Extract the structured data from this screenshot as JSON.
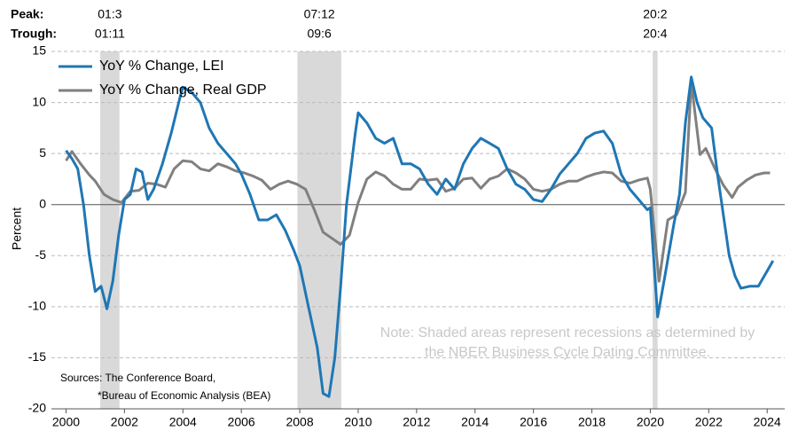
{
  "chart_data": {
    "type": "line",
    "y_label": "Percent",
    "peak_label": "Peak:",
    "trough_label": "Trough:",
    "note": [
      "Note: Shaded areas represent recessions as determined by",
      "the NBER Business Cycle Dating Committee."
    ],
    "sources": [
      "Sources: The Conference Board,",
      "*Bureau of Economic Analysis (BEA)"
    ],
    "xlim": [
      1999.5,
      2024.6
    ],
    "xticks": [
      2000,
      2002,
      2004,
      2006,
      2008,
      2010,
      2012,
      2014,
      2016,
      2018,
      2020,
      2022,
      2024
    ],
    "ylim": [
      -20,
      15
    ],
    "yticks": [
      -20,
      -15,
      -10,
      -5,
      0,
      5,
      10,
      15
    ],
    "grid": true,
    "legend": "top-left",
    "recessions": [
      {
        "peak": "01:3",
        "trough": "01:11",
        "start": 2001.17,
        "end": 2001.83
      },
      {
        "peak": "07:12",
        "trough": "09:6",
        "start": 2007.92,
        "end": 2009.42
      },
      {
        "peak": "20:2",
        "trough": "20:4",
        "start": 2020.08,
        "end": 2020.25
      }
    ],
    "recession_color": "#d9d9d9",
    "series": [
      {
        "name": "YoY % Change, LEI",
        "color": "#1f77b4",
        "x": [
          2000.0,
          2000.2,
          2000.4,
          2000.6,
          2000.8,
          2001.0,
          2001.2,
          2001.4,
          2001.6,
          2001.8,
          2002.0,
          2002.2,
          2002.4,
          2002.6,
          2002.8,
          2003.0,
          2003.3,
          2003.6,
          2003.9,
          2004.0,
          2004.3,
          2004.6,
          2004.9,
          2005.2,
          2005.5,
          2005.8,
          2006.0,
          2006.3,
          2006.6,
          2006.9,
          2007.2,
          2007.5,
          2007.8,
          2008.0,
          2008.3,
          2008.6,
          2008.8,
          2009.0,
          2009.2,
          2009.4,
          2009.6,
          2009.9,
          2010.0,
          2010.3,
          2010.6,
          2010.9,
          2011.2,
          2011.5,
          2011.8,
          2012.1,
          2012.4,
          2012.7,
          2013.0,
          2013.3,
          2013.6,
          2013.9,
          2014.2,
          2014.5,
          2014.8,
          2015.1,
          2015.4,
          2015.7,
          2016.0,
          2016.3,
          2016.6,
          2016.9,
          2017.2,
          2017.5,
          2017.8,
          2018.1,
          2018.4,
          2018.7,
          2019.0,
          2019.3,
          2019.6,
          2019.9,
          2020.0,
          2020.25,
          2020.5,
          2020.8,
          2021.0,
          2021.2,
          2021.4,
          2021.6,
          2021.8,
          2022.1,
          2022.3,
          2022.5,
          2022.7,
          2022.9,
          2023.1,
          2023.4,
          2023.7,
          2024.0,
          2024.2
        ],
        "values": [
          5.3,
          4.5,
          3.5,
          0,
          -5,
          -8.5,
          -8,
          -10.2,
          -7.5,
          -3,
          0.5,
          1,
          3.5,
          3.2,
          0.5,
          1.5,
          4,
          7,
          10.5,
          11.5,
          11,
          10,
          7.5,
          6,
          5,
          4,
          3,
          1,
          -1.5,
          -1.5,
          -1,
          -2.5,
          -4.5,
          -6,
          -10,
          -14,
          -18.5,
          -18.8,
          -15,
          -8,
          0,
          7,
          9,
          8,
          6.5,
          6,
          6.5,
          4,
          4,
          3.5,
          2,
          1,
          2.5,
          1.5,
          4,
          5.5,
          6.5,
          6,
          5.5,
          3.5,
          2,
          1.5,
          0.5,
          0.3,
          1.5,
          3,
          4,
          5,
          6.5,
          7,
          7.2,
          6,
          3,
          1.5,
          0.5,
          -0.5,
          -0.3,
          -11,
          -7,
          -2,
          1,
          8,
          12.5,
          10,
          8.5,
          7.5,
          3,
          -1,
          -5,
          -7,
          -8.2,
          -8,
          -8,
          -6.5,
          -5.5
        ]
      },
      {
        "name": "YoY % Change, Real GDP",
        "color": "#808080",
        "x": [
          2000.0,
          2000.2,
          2000.5,
          2000.8,
          2001.0,
          2001.3,
          2001.6,
          2001.9,
          2002.2,
          2002.5,
          2002.8,
          2003.1,
          2003.4,
          2003.7,
          2004.0,
          2004.3,
          2004.6,
          2004.9,
          2005.2,
          2005.5,
          2005.8,
          2006.1,
          2006.4,
          2006.7,
          2007.0,
          2007.3,
          2007.6,
          2007.9,
          2008.2,
          2008.5,
          2008.8,
          2009.1,
          2009.4,
          2009.7,
          2010.0,
          2010.3,
          2010.6,
          2010.9,
          2011.2,
          2011.5,
          2011.8,
          2012.1,
          2012.4,
          2012.7,
          2013.0,
          2013.3,
          2013.6,
          2013.9,
          2014.2,
          2014.5,
          2014.8,
          2015.1,
          2015.4,
          2015.7,
          2016.0,
          2016.3,
          2016.6,
          2016.9,
          2017.2,
          2017.5,
          2017.8,
          2018.1,
          2018.4,
          2018.7,
          2019.0,
          2019.3,
          2019.6,
          2019.9,
          2020.0,
          2020.3,
          2020.6,
          2020.9,
          2021.2,
          2021.4,
          2021.7,
          2021.9,
          2022.2,
          2022.5,
          2022.8,
          2023.0,
          2023.3,
          2023.6,
          2023.9,
          2024.1
        ],
        "values": [
          4.3,
          5.2,
          4,
          2.9,
          2.3,
          1,
          0.5,
          0.2,
          1.3,
          1.4,
          2.1,
          2,
          1.7,
          3.5,
          4.3,
          4.2,
          3.5,
          3.3,
          4,
          3.7,
          3.3,
          3.1,
          2.8,
          2.4,
          1.5,
          2,
          2.3,
          2,
          1.5,
          -0.5,
          -2.7,
          -3.3,
          -3.9,
          -3,
          0.2,
          2.5,
          3.2,
          2.8,
          2,
          1.5,
          1.5,
          2.5,
          2.4,
          2.5,
          1.3,
          1.6,
          2.5,
          2.6,
          1.6,
          2.5,
          2.8,
          3.5,
          3.1,
          2.5,
          1.5,
          1.3,
          1.5,
          2,
          2.3,
          2.3,
          2.7,
          3,
          3.2,
          3.1,
          2.3,
          2.1,
          2.4,
          2.6,
          1.5,
          -7.5,
          -1.5,
          -1,
          1.2,
          12,
          4.9,
          5.5,
          3.6,
          1.9,
          0.7,
          1.7,
          2.4,
          2.9,
          3.1,
          3.1
        ]
      }
    ]
  }
}
